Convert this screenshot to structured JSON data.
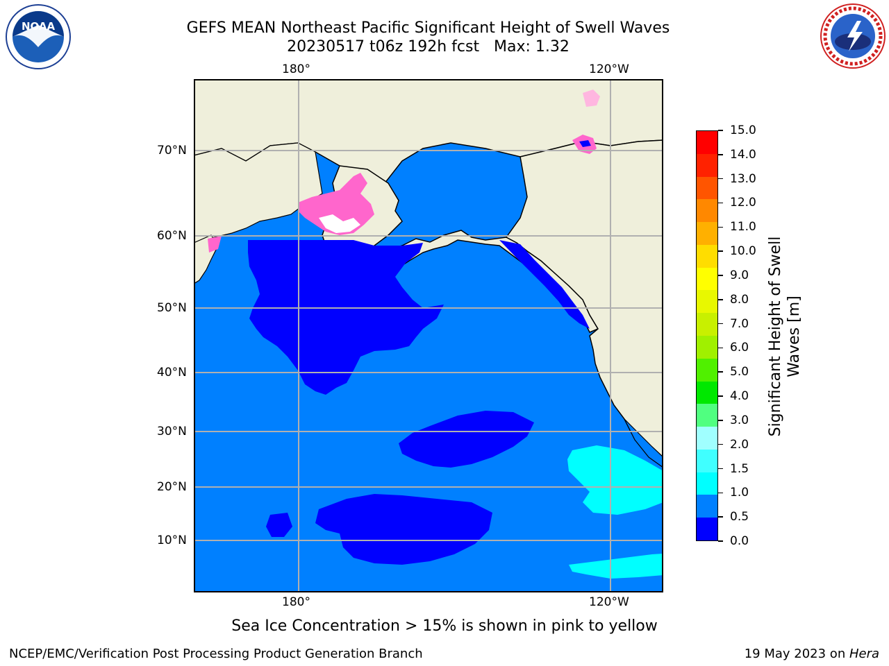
{
  "header": {
    "title_line1": "GEFS MEAN Northeast Pacific Significant Height of Swell Waves",
    "title_line2": "20230517 t06z 192h fcst   Max: 1.32"
  },
  "logos": {
    "left": {
      "icon": "noaa-logo",
      "text": "NOAA"
    },
    "right": {
      "icon": "nws-logo",
      "text": "NATIONAL WEATHER SERVICE"
    }
  },
  "map": {
    "lon_labels_top": [
      "180°",
      "120°W"
    ],
    "lon_labels_bottom": [
      "180°",
      "120°W"
    ],
    "lat_labels": [
      "70°N",
      "60°N",
      "50°N",
      "40°N",
      "30°N",
      "20°N",
      "10°N"
    ],
    "colors": {
      "land": "#efefdb",
      "ocean_base": "#0080ff",
      "low_swell": "#0000ff",
      "mid_swell": "#00ffff",
      "ice": "#ff66cc",
      "grid": "#b0b0b0"
    }
  },
  "colorbar": {
    "label_line1": "Significant Height of Swell",
    "label_line2": "Waves [m]",
    "ticks": [
      "15.0",
      "14.0",
      "13.0",
      "12.0",
      "11.0",
      "10.0",
      "9.0",
      "8.0",
      "7.0",
      "6.0",
      "5.0",
      "4.0",
      "3.0",
      "2.0",
      "1.5",
      "1.0",
      "0.5",
      "0.0"
    ],
    "colors": [
      "#0000ff",
      "#0080ff",
      "#00ffff",
      "#40ffff",
      "#a0ffff",
      "#50ff80",
      "#00e800",
      "#50f000",
      "#a0f000",
      "#c8f000",
      "#e8f800",
      "#ffff00",
      "#ffdd00",
      "#ffb000",
      "#ff8800",
      "#ff5500",
      "#ff2200",
      "#ff0000"
    ]
  },
  "note": "Sea Ice Concentration > 15% is shown in pink to yellow",
  "footer": {
    "left": "NCEP/EMC/Verification Post Processing Product Generation Branch",
    "right_date": "19 May 2023 on ",
    "right_machine": "Hera"
  }
}
